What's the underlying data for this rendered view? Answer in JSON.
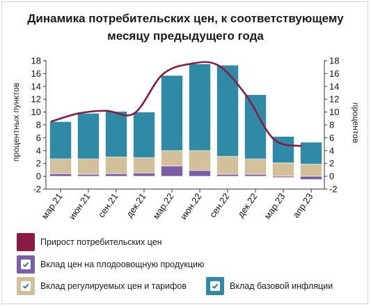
{
  "chart_data": {
    "type": "bar",
    "title": "Динамика потребительских цен, к соответствующему месяцу предыдущего года",
    "ylabel_left": "процентных пунктов",
    "ylabel_right": "процентов",
    "ylim": [
      -2,
      18
    ],
    "yticks": [
      -2,
      0,
      2,
      4,
      6,
      8,
      10,
      12,
      14,
      16,
      18
    ],
    "categories": [
      "мар.21",
      "июн.21",
      "сен.21",
      "дек.21",
      "мар.22",
      "июн.22",
      "сен.22",
      "дек.22",
      "мар.23",
      "апр.23"
    ],
    "series": [
      {
        "name": "Вклад цен на плодоовощную продукцию",
        "kind": "stacked-bar",
        "color": "#7b5ea7",
        "values": [
          0.4,
          0.3,
          0.4,
          0.5,
          1.6,
          0.9,
          0.3,
          0.3,
          -0.2,
          -0.5
        ]
      },
      {
        "name": "Вклад регулируемых цен и тарифов",
        "kind": "stacked-bar",
        "color": "#d2c09a",
        "values": [
          2.3,
          2.4,
          2.6,
          2.4,
          2.4,
          3.1,
          2.8,
          2.4,
          2.1,
          1.9
        ]
      },
      {
        "name": "Вклад базовой инфляции",
        "kind": "stacked-bar",
        "color": "#2f8aa6",
        "values": [
          5.8,
          7.1,
          7.1,
          7.1,
          11.7,
          13.5,
          14.2,
          10.0,
          4.1,
          3.4
        ]
      },
      {
        "name": "Прирост потребительских цен",
        "kind": "line",
        "color": "#8b1a42",
        "values": [
          8.5,
          9.8,
          10.2,
          9.8,
          15.8,
          17.5,
          17.3,
          12.7,
          5.8,
          4.7
        ]
      }
    ],
    "legend_placement": "bottom",
    "grid": false
  },
  "legend": [
    {
      "label": "Прирост потребительских цен",
      "color": "#8b1a42",
      "checkbox": false
    },
    {
      "label": "Вклад цен на плодоовощную продукцию",
      "color": "#7b5ea7",
      "checkbox": true
    },
    {
      "label": "Вклад регулируемых цен и тарифов",
      "color": "#d2c09a",
      "checkbox": true
    },
    {
      "label": "Вклад базовой инфляции",
      "color": "#2f8aa6",
      "checkbox": true
    }
  ]
}
